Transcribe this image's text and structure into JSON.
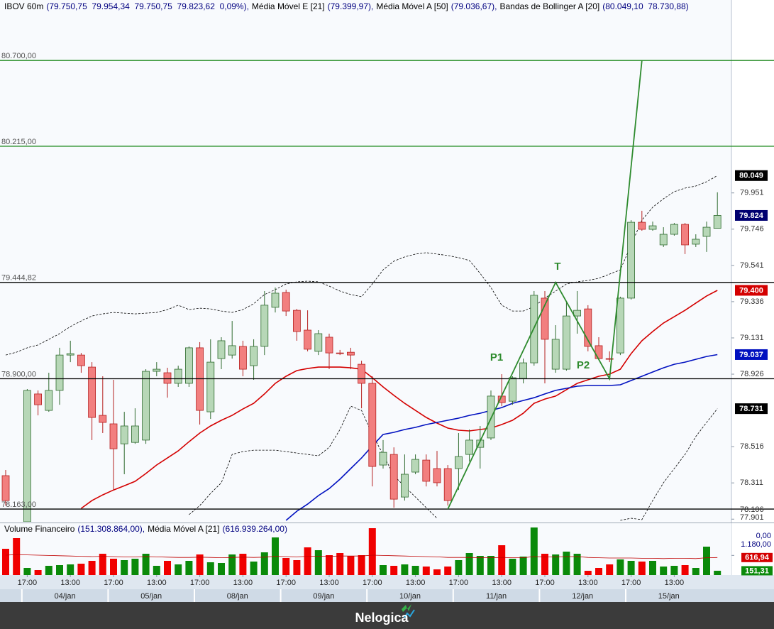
{
  "chart_data": [
    {
      "type": "candlestick",
      "symbol": "IBOV 60m",
      "quote": "(79.750,75  79.954,34  79.750,75  79.823,62  0,09%),",
      "ylim": [
        78091,
        81042
      ],
      "yticks": [
        {
          "value": 79951,
          "label": "79.951"
        },
        {
          "value": 79746,
          "label": "79.746"
        },
        {
          "value": 79541,
          "label": "79.541"
        },
        {
          "value": 79336,
          "label": "79.336"
        },
        {
          "value": 79131,
          "label": "79.131"
        },
        {
          "value": 78926,
          "label": "78.926"
        },
        {
          "value": 78516,
          "label": "78.516"
        },
        {
          "value": 78311,
          "label": "78.311"
        },
        {
          "value": 78106,
          "label": "78.106"
        },
        {
          "value": 77901,
          "label": "77.901"
        }
      ],
      "up_color": "#b7d7b7",
      "up_edge": "#2f6b2f",
      "down_color": "#f27f7f",
      "down_edge": "#b52020",
      "open": [
        78352,
        null,
        78091,
        78814,
        78721,
        78834,
        79034,
        79034,
        78966,
        78693,
        78645,
        78532,
        78540,
        78553,
        78942,
        78934,
        78874,
        78874,
        79075,
        78713,
        79014,
        79034,
        79083,
        78974,
        79083,
        79304,
        79388,
        79287,
        79175,
        79055,
        79135,
        79046,
        79050,
        78982,
        78874,
        78412,
        78472,
        78231,
        78372,
        78440,
        78392,
        78392,
        78392,
        78472,
        78512,
        78565,
        78802,
        78773,
        78902,
        78990,
        79356,
        78954,
        78954,
        79255,
        79295,
        79087,
        79014,
        79046,
        79356,
        79785,
        79745,
        79657,
        79717,
        79773,
        79661,
        79705,
        79750.75
      ],
      "high": [
        78384,
        null,
        78842,
        78834,
        78934,
        79075,
        79115,
        79046,
        78994,
        78914,
        78894,
        78713,
        78733,
        78954,
        78994,
        78962,
        78974,
        79083,
        79107,
        79123,
        79135,
        79227,
        79115,
        79123,
        79396,
        79416,
        79404,
        79295,
        79287,
        79175,
        79155,
        79063,
        79075,
        79002,
        78914,
        78553,
        78512,
        78472,
        78472,
        78472,
        78492,
        78412,
        78593,
        78613,
        78633,
        78834,
        78926,
        78914,
        79014,
        79396,
        79396,
        79203,
        79336,
        79396,
        79316,
        79135,
        79055,
        79364,
        79797,
        79850,
        79789,
        79757,
        79781,
        79781,
        79717,
        79789,
        79954.34
      ],
      "low": [
        78183,
        null,
        78071,
        78693,
        78713,
        78753,
        78994,
        78934,
        78553,
        78593,
        78271,
        78360,
        78532,
        78532,
        78914,
        78793,
        78854,
        78854,
        78641,
        78673,
        78954,
        79014,
        78914,
        78894,
        79034,
        79275,
        79255,
        79115,
        79055,
        79034,
        78954,
        79034,
        78954,
        78733,
        78291,
        78392,
        78171,
        78211,
        78360,
        78291,
        78291,
        78183,
        78271,
        78432,
        78392,
        78553,
        78745,
        78753,
        78874,
        78974,
        78874,
        78934,
        78946,
        79155,
        79055,
        79014,
        78994,
        79034,
        79348,
        79737,
        79737,
        79645,
        79709,
        79605,
        79645,
        79617,
        79750.75
      ],
      "close": [
        78211,
        null,
        78834,
        78753,
        78834,
        79034,
        79042,
        78974,
        78681,
        78653,
        78504,
        78633,
        78633,
        78942,
        78954,
        78874,
        78954,
        79075,
        78721,
        78994,
        79115,
        79087,
        78954,
        79083,
        79316,
        79384,
        79283,
        79167,
        79067,
        79155,
        79046,
        79046,
        79034,
        78874,
        78404,
        78484,
        78219,
        78360,
        78444,
        78320,
        78312,
        78211,
        78460,
        78553,
        78553,
        78802,
        78765,
        78906,
        78990,
        79372,
        79123,
        79123,
        79255,
        79287,
        79083,
        79014,
        79010,
        79356,
        79785,
        79745,
        79765,
        79717,
        79773,
        79657,
        79689,
        79757,
        79823.62
      ],
      "series": [
        {
          "name": "Média Móvel E [21]",
          "label": "(79.399,97),",
          "color": "#d40000",
          "values": [
            null,
            null,
            null,
            null,
            null,
            null,
            null,
            78167,
            78211,
            78243,
            78271,
            78295,
            78320,
            78364,
            78412,
            78452,
            78492,
            78544,
            78593,
            78633,
            78665,
            78693,
            78729,
            78761,
            78814,
            78874,
            78914,
            78946,
            78958,
            78966,
            78966,
            78966,
            78962,
            78954,
            78906,
            78854,
            78806,
            78761,
            78721,
            78681,
            78649,
            78621,
            78609,
            78605,
            78613,
            78621,
            78641,
            78665,
            78705,
            78761,
            78785,
            78802,
            78838,
            78874,
            78894,
            78914,
            78926,
            78954,
            79042,
            79115,
            79167,
            79215,
            79251,
            79287,
            79328,
            79368,
            79399.97
          ]
        },
        {
          "name": "Média Móvel A [50]",
          "label": "(79.036,67),",
          "color": "#0010c0",
          "values": [
            null,
            null,
            null,
            null,
            null,
            null,
            null,
            null,
            null,
            null,
            null,
            null,
            null,
            null,
            null,
            null,
            null,
            null,
            null,
            null,
            null,
            null,
            null,
            null,
            null,
            null,
            78099,
            78151,
            78191,
            78239,
            78279,
            78332,
            78392,
            78452,
            78520,
            78585,
            78597,
            78613,
            78625,
            78641,
            78653,
            78665,
            78677,
            78693,
            78705,
            78721,
            78737,
            78761,
            78777,
            78793,
            78814,
            78834,
            78846,
            78858,
            78862,
            78862,
            78862,
            78866,
            78890,
            78914,
            78938,
            78962,
            78982,
            78994,
            79010,
            79026,
            79036.67
          ]
        }
      ],
      "bands": {
        "name": "Bandas de Bollinger A [20]",
        "label": "(80.049,10  78.730,88)",
        "color": "#000000",
        "upper": [
          79034,
          79050,
          79075,
          79091,
          79123,
          79155,
          79195,
          79227,
          79255,
          79267,
          79275,
          79271,
          79267,
          79271,
          79275,
          79291,
          79316,
          79291,
          79299,
          79295,
          79283,
          79275,
          79291,
          79324,
          79376,
          79404,
          79436,
          79448,
          79452,
          79448,
          79424,
          79396,
          79376,
          79364,
          79436,
          79516,
          79565,
          79589,
          79605,
          79613,
          79605,
          79597,
          79585,
          79569,
          79496,
          79416,
          79316,
          79283,
          79283,
          79308,
          79356,
          79396,
          79436,
          79448,
          79456,
          79468,
          79492,
          79516,
          79657,
          79797,
          79870,
          79918,
          79958,
          79978,
          79990,
          80014,
          80049.1
        ],
        "lower": [
          null,
          null,
          null,
          null,
          null,
          null,
          null,
          null,
          null,
          null,
          null,
          null,
          null,
          null,
          null,
          null,
          null,
          78131,
          78183,
          78251,
          78312,
          78472,
          78488,
          78496,
          78496,
          78496,
          78488,
          78480,
          78472,
          78464,
          78512,
          78613,
          78745,
          78721,
          78585,
          78472,
          78352,
          78291,
          78231,
          78171,
          78111,
          null,
          null,
          null,
          null,
          null,
          null,
          null,
          null,
          null,
          null,
          null,
          null,
          null,
          null,
          null,
          null,
          78099,
          78111,
          78103,
          78211,
          78312,
          78392,
          78472,
          78573,
          78653,
          78730.88
        ]
      },
      "price_lines": [
        {
          "value": 80700,
          "label": "80.700,00",
          "color": "#1f8a1f"
        },
        {
          "value": 80215,
          "label": "80.215,00",
          "color": "#1f8a1f"
        },
        {
          "value": 79444.82,
          "label": "79.444,82",
          "color": "#000000"
        },
        {
          "value": 78900,
          "label": "78.900,00",
          "color": "#000000"
        },
        {
          "value": 78163,
          "label": "78.163,00",
          "color": "#000000"
        }
      ],
      "price_tags": [
        {
          "value": 80049.1,
          "label": "80.049",
          "color": "#000000"
        },
        {
          "value": 79823.62,
          "label": "79.824",
          "color": "#000070"
        },
        {
          "value": 79399.97,
          "label": "79.400",
          "color": "#d40000"
        },
        {
          "value": 79036.67,
          "label": "79.037",
          "color": "#0010c0"
        },
        {
          "value": 78730.88,
          "label": "78.731",
          "color": "#000000"
        }
      ],
      "pattern": {
        "color": "#2e8b2e",
        "x": [
          41,
          51,
          56,
          59
        ],
        "values": [
          78163,
          79444.82,
          78900,
          80700
        ]
      },
      "annotations": [
        "T",
        "P1",
        "P2"
      ]
    },
    {
      "type": "bar",
      "name": "Volume Financeiro",
      "label": "(151.308.864,00),",
      "ylim": [
        0,
        1800
      ],
      "up_color": "#0a8a0a",
      "down_color": "#f00000",
      "values": [
        925,
        1300,
        250,
        175,
        325,
        350,
        375,
        400,
        500,
        750,
        575,
        525,
        575,
        750,
        325,
        500,
        375,
        500,
        725,
        450,
        425,
        725,
        750,
        475,
        800,
        1325,
        600,
        525,
        975,
        875,
        700,
        775,
        675,
        700,
        1650,
        350,
        325,
        375,
        325,
        300,
        200,
        300,
        525,
        775,
        675,
        675,
        1050,
        575,
        650,
        1675,
        750,
        725,
        825,
        750,
        150,
        250,
        375,
        550,
        500,
        475,
        500,
        300,
        325,
        350,
        250,
        1000,
        151.31
      ],
      "series": [
        {
          "name": "Média Móvel A [21]",
          "label": "(616.939.264,00)",
          "color": "#c00000",
          "values": [
            700,
            720,
            710,
            700,
            690,
            680,
            670,
            660,
            650,
            660,
            650,
            640,
            640,
            650,
            640,
            630,
            620,
            620,
            630,
            620,
            610,
            620,
            630,
            620,
            630,
            660,
            650,
            640,
            660,
            660,
            660,
            670,
            670,
            670,
            700,
            690,
            680,
            670,
            660,
            650,
            640,
            620,
            620,
            620,
            610,
            610,
            620,
            610,
            610,
            650,
            640,
            640,
            650,
            650,
            620,
            610,
            600,
            600,
            600,
            590,
            590,
            580,
            590,
            590,
            580,
            610,
            616.94
          ]
        }
      ],
      "axis_labels": [
        "0,00",
        "1.180,00"
      ],
      "tags": [
        {
          "value": 616.94,
          "label": "616,94",
          "color": "#d40000"
        },
        {
          "value": 151.31,
          "label": "151,31",
          "color": "#0a8a0a"
        }
      ]
    }
  ],
  "x_axis": {
    "times": [
      "17:00",
      "13:00",
      "17:00",
      "13:00",
      "17:00",
      "13:00",
      "17:00",
      "13:00",
      "17:00",
      "13:00",
      "17:00",
      "13:00",
      "17:00",
      "13:00",
      "17:00",
      "13:00"
    ],
    "dates": [
      "04/jan",
      "05/jan",
      "08/jan",
      "09/jan",
      "10/jan",
      "11/jan",
      "12/jan",
      "15/jan"
    ]
  },
  "footer": {
    "brand": "Nelogica"
  }
}
